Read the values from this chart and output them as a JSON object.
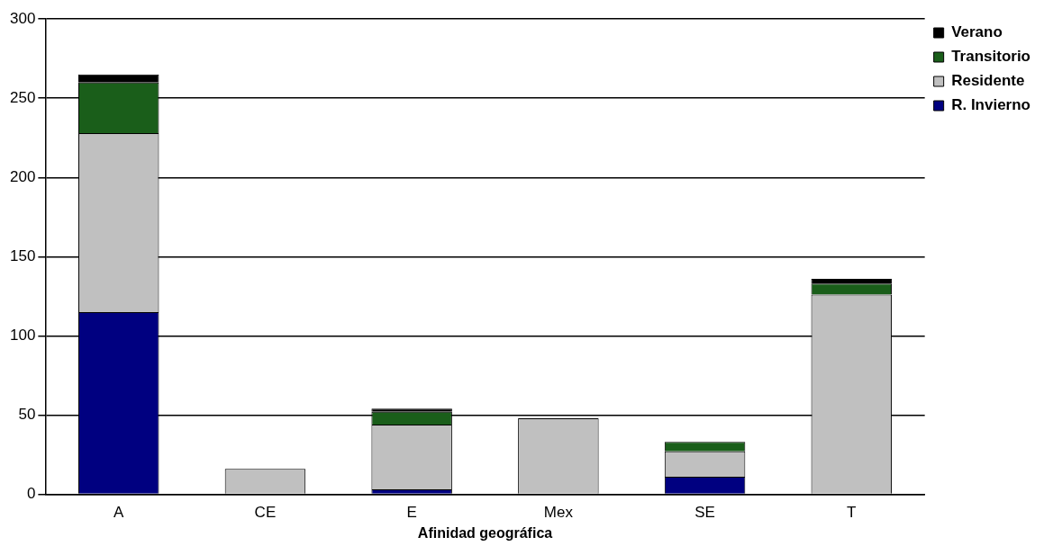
{
  "chart_data": {
    "type": "bar",
    "stacked": true,
    "xlabel": "Afinidad geográfica",
    "categories": [
      "A",
      "CE",
      "E",
      "Mex",
      "SE",
      "T"
    ],
    "series": [
      {
        "name": "R. Invierno",
        "color": "#000080",
        "values": [
          115,
          0,
          3,
          0,
          11,
          0
        ]
      },
      {
        "name": "Residente",
        "color": "#c0c0c0",
        "values": [
          113,
          16,
          41,
          48,
          16,
          126
        ]
      },
      {
        "name": "Transitorio",
        "color": "#1a5e1a",
        "values": [
          32,
          0,
          8,
          0,
          6,
          7
        ]
      },
      {
        "name": "Verano",
        "color": "#000000",
        "values": [
          5,
          0,
          2,
          0,
          0,
          3
        ]
      }
    ],
    "ylim": [
      0,
      300
    ],
    "yticks": [
      0,
      50,
      100,
      150,
      200,
      250,
      300
    ],
    "grid": "y",
    "legend": "top right"
  }
}
